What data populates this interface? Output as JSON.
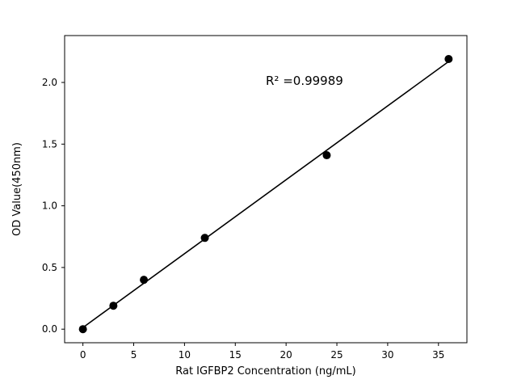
{
  "chart_data": {
    "type": "scatter",
    "title": "",
    "xlabel": "Rat IGFBP2 Concentration (ng/mL)",
    "ylabel": "OD Value(450nm)",
    "x": [
      0,
      3,
      6,
      12,
      24,
      36
    ],
    "y": [
      0.0,
      0.19,
      0.4,
      0.74,
      1.41,
      2.19
    ],
    "fit_line": {
      "slope": 0.0599,
      "intercept": 0.013,
      "x_start": 0,
      "x_end": 36
    },
    "annotation": {
      "text": "R² =0.99989",
      "x": 18,
      "y": 1.98
    },
    "xlim": [
      -1.8,
      37.8
    ],
    "ylim": [
      -0.11,
      2.38
    ],
    "x_ticks": [
      "0",
      "5",
      "10",
      "15",
      "20",
      "25",
      "30",
      "35"
    ],
    "y_ticks": [
      "0.0",
      "0.5",
      "1.0",
      "1.5",
      "2.0"
    ],
    "grid": false,
    "legend": null,
    "marker_color": "#000000",
    "line_color": "#000000",
    "axis_color": "#000000",
    "background_color": "#ffffff"
  }
}
